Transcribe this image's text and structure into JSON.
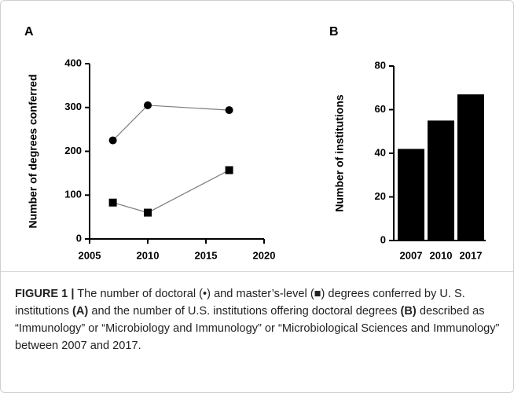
{
  "chart_data": [
    {
      "type": "line",
      "panel": "A",
      "y_label": "Number of degrees conferred",
      "xlim": [
        2005,
        2020
      ],
      "xticks": [
        2005,
        2010,
        2015,
        2020
      ],
      "ylim": [
        0,
        400
      ],
      "yticks": [
        0,
        100,
        200,
        300,
        400
      ],
      "line_color": "#7a7a7a",
      "series": [
        {
          "marker": "circle",
          "color": "#000000",
          "x": [
            2007,
            2010,
            2017
          ],
          "values": [
            225,
            305,
            294
          ]
        },
        {
          "marker": "square",
          "color": "#000000",
          "x": [
            2007,
            2010,
            2017
          ],
          "values": [
            83,
            60,
            157
          ]
        }
      ]
    },
    {
      "type": "bar",
      "panel": "B",
      "y_label": "Number of institutions",
      "categories": [
        "2007",
        "2010",
        "2017"
      ],
      "values": [
        42,
        55,
        67
      ],
      "color": "#000000",
      "ylim": [
        0,
        80
      ],
      "yticks": [
        0,
        20,
        40,
        60,
        80
      ]
    }
  ],
  "caption": {
    "parts": [
      {
        "text": "FIGURE 1 |",
        "bold": true
      },
      {
        "text": " The number of doctoral (•) and master’s-level (■) degrees conferred by U. S. institutions ",
        "bold": false
      },
      {
        "text": "(A)",
        "bold": true
      },
      {
        "text": " and the number of U.S. institutions offering doctoral degrees ",
        "bold": false
      },
      {
        "text": "(B)",
        "bold": true
      },
      {
        "text": " described as “Immunology” or “Microbiology and Immunology” or “Microbiological Sciences and Immunology” between 2007 and 2017.",
        "bold": false
      }
    ]
  }
}
